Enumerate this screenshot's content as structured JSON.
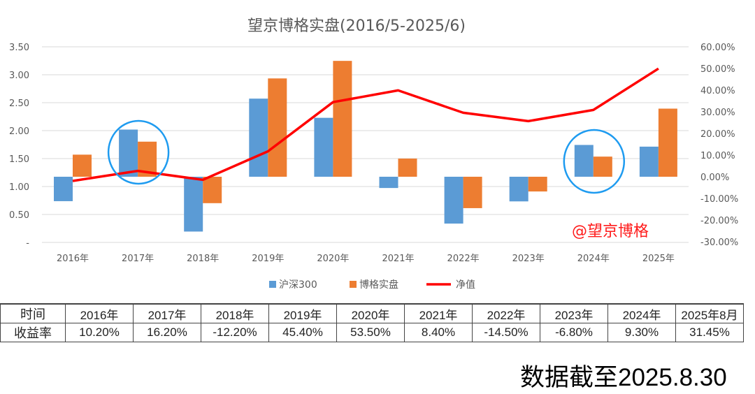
{
  "chart_data": {
    "type": "bar+line",
    "title": "望京博格实盘(2016/5-2025/6)",
    "categories": [
      "2016年",
      "2017年",
      "2018年",
      "2019年",
      "2020年",
      "2021年",
      "2022年",
      "2023年",
      "2024年",
      "2025年"
    ],
    "series": [
      {
        "name": "沪深300",
        "type": "bar",
        "axis": "right",
        "color": "#5b9bd5",
        "values": [
          -11.28,
          21.78,
          -25.31,
          36.07,
          27.21,
          -5.2,
          -21.63,
          -11.38,
          14.68,
          13.9
        ]
      },
      {
        "name": "博格实盘",
        "type": "bar",
        "axis": "right",
        "color": "#ed7d31",
        "values": [
          10.2,
          16.2,
          -12.2,
          45.4,
          53.5,
          8.4,
          -14.5,
          -6.8,
          9.3,
          31.45
        ]
      },
      {
        "name": "净值",
        "type": "line",
        "axis": "left",
        "color": "#ff0000",
        "values": [
          1.1,
          1.28,
          1.12,
          1.63,
          2.51,
          2.72,
          2.32,
          2.17,
          2.37,
          3.11
        ]
      }
    ],
    "left_axis": {
      "ylim": [
        0,
        3.5
      ],
      "ticks": [
        "-",
        "0.50",
        "1.00",
        "1.50",
        "2.00",
        "2.50",
        "3.00",
        "3.50"
      ]
    },
    "right_axis": {
      "ylim": [
        -30,
        60
      ],
      "ticks": [
        "-30.00%",
        "-20.00%",
        "-10.00%",
        "0.00%",
        "10.00%",
        "20.00%",
        "30.00%",
        "40.00%",
        "50.00%",
        "60.00%"
      ]
    },
    "grid": true,
    "legend": "bottom",
    "highlights": [
      "2017年",
      "2024年"
    ]
  },
  "watermark": "@望京博格",
  "table": {
    "header_label": "时间",
    "row_label": "收益率",
    "periods": [
      "2016年",
      "2017年",
      "2018年",
      "2019年",
      "2020年",
      "2021年",
      "2022年",
      "2023年",
      "2024年",
      "2025年8月"
    ],
    "returns": [
      "10.20%",
      "16.20%",
      "-12.20%",
      "45.40%",
      "53.50%",
      "8.40%",
      "-14.50%",
      "-6.80%",
      "9.30%",
      "31.45%"
    ]
  },
  "footer": "数据截至2025.8.30"
}
